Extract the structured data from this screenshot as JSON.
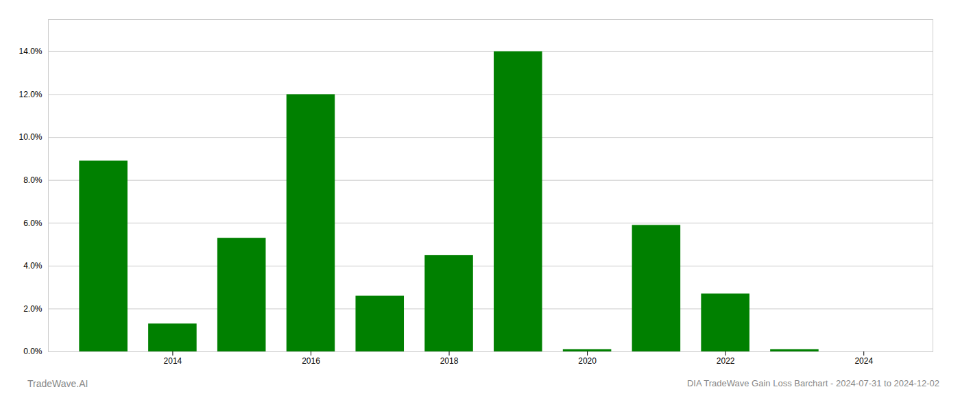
{
  "chart_data": {
    "type": "bar",
    "title": "DIA TradeWave Gain Loss Barchart - 2024-07-31 to 2024-12-02",
    "annotations": [
      "TradeWave.AI"
    ],
    "x": [
      2013,
      2014,
      2015,
      2016,
      2017,
      2018,
      2019,
      2020,
      2021,
      2022,
      2023
    ],
    "values": [
      0.089,
      0.013,
      0.053,
      0.12,
      0.026,
      0.045,
      0.14,
      0.001,
      0.059,
      0.027,
      0.001
    ],
    "color": "#008000",
    "xlim": [
      2012.2,
      2025.0
    ],
    "xticks": [
      2014,
      2016,
      2018,
      2020,
      2022,
      2024
    ],
    "ylim": [
      0,
      0.155
    ],
    "yticks": [
      {
        "value": 0.0,
        "label": "0.0%"
      },
      {
        "value": 0.02,
        "label": "2.0%"
      },
      {
        "value": 0.04,
        "label": "4.0%"
      },
      {
        "value": 0.06,
        "label": "6.0%"
      },
      {
        "value": 0.08,
        "label": "8.0%"
      },
      {
        "value": 0.1,
        "label": "10.0%"
      },
      {
        "value": 0.12,
        "label": "12.0%"
      },
      {
        "value": 0.14,
        "label": "14.0%"
      }
    ],
    "grid": true
  }
}
